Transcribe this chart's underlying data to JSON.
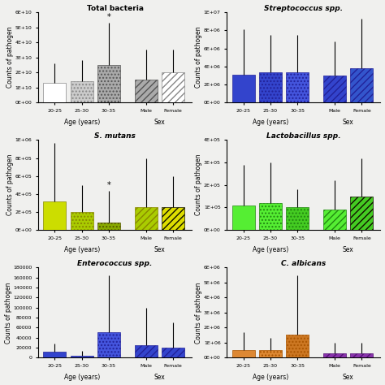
{
  "subplots": [
    {
      "title": "Total bacteria",
      "title_style": "bold",
      "ylabel": "Counts of pathogen",
      "xlabel_age": "Age (years)",
      "xlabel_sex": "Sex",
      "ylim": [
        0,
        60000000000.0
      ],
      "yticks": [
        0,
        10000000000.0,
        20000000000.0,
        30000000000.0,
        40000000000.0,
        50000000000.0,
        60000000000.0
      ],
      "ytick_labels": [
        "0E+00",
        "1E+10",
        "2E+10",
        "3E+10",
        "4E+10",
        "5E+10",
        "6E+10"
      ],
      "bars": [
        {
          "label": "20-25",
          "value": 13000000000.0,
          "err": 13000000000.0,
          "color": "#ffffff",
          "edgecolor": "#888888",
          "hatch": "",
          "group": "age"
        },
        {
          "label": "25-30",
          "value": 14000000000.0,
          "err": 14000000000.0,
          "color": "#cccccc",
          "edgecolor": "#888888",
          "hatch": "....",
          "group": "age"
        },
        {
          "label": "30-35",
          "value": 25000000000.0,
          "err": 28000000000.0,
          "color": "#aaaaaa",
          "edgecolor": "#555555",
          "hatch": "....",
          "group": "age",
          "star": true
        },
        {
          "label": "Male",
          "value": 15000000000.0,
          "err": 20000000000.0,
          "color": "#aaaaaa",
          "edgecolor": "#555555",
          "hatch": "////",
          "group": "sex"
        },
        {
          "label": "Female",
          "value": 20000000000.0,
          "err": 15000000000.0,
          "color": "#ffffff",
          "edgecolor": "#888888",
          "hatch": "////",
          "group": "sex"
        }
      ]
    },
    {
      "title": "Streptococcus spp.",
      "title_style": "italic",
      "ylabel": "Counts of pathogen",
      "xlabel_age": "Age (years)",
      "xlabel_sex": "Sex",
      "ylim": [
        0,
        10000000.0
      ],
      "yticks": [
        0,
        2000000.0,
        4000000.0,
        6000000.0,
        8000000.0,
        10000000.0
      ],
      "ytick_labels": [
        "0E+00",
        "2E+06",
        "4E+06",
        "6E+06",
        "8E+06",
        "1E+07"
      ],
      "bars": [
        {
          "label": "20-25",
          "value": 3100000.0,
          "err": 5000000.0,
          "color": "#3344cc",
          "edgecolor": "#222299",
          "hatch": "",
          "group": "age"
        },
        {
          "label": "25-30",
          "value": 3300000.0,
          "err": 4200000.0,
          "color": "#3344cc",
          "edgecolor": "#222299",
          "hatch": "....",
          "group": "age"
        },
        {
          "label": "30-35",
          "value": 3300000.0,
          "err": 4200000.0,
          "color": "#4455dd",
          "edgecolor": "#222299",
          "hatch": "....",
          "group": "age"
        },
        {
          "label": "Male",
          "value": 3000000.0,
          "err": 3800000.0,
          "color": "#3344cc",
          "edgecolor": "#222299",
          "hatch": "////",
          "group": "sex"
        },
        {
          "label": "Female",
          "value": 3800000.0,
          "err": 5500000.0,
          "color": "#3355cc",
          "edgecolor": "#222299",
          "hatch": "////",
          "group": "sex"
        }
      ]
    },
    {
      "title": "S. mutans",
      "title_style": "italic",
      "ylabel": "Counts of pathogen",
      "xlabel_age": "Age (years)",
      "xlabel_sex": "Sex",
      "ylim": [
        0,
        1000000.0
      ],
      "yticks": [
        0,
        200000.0,
        400000.0,
        600000.0,
        800000.0,
        1000000.0
      ],
      "ytick_labels": [
        "0E+00",
        "2E+05",
        "4E+05",
        "6E+05",
        "8E+05",
        "1E+06"
      ],
      "bars": [
        {
          "label": "20-25",
          "value": 320000.0,
          "err": 650000.0,
          "color": "#ccdd00",
          "edgecolor": "#888800",
          "hatch": "",
          "group": "age"
        },
        {
          "label": "25-30",
          "value": 200000.0,
          "err": 300000.0,
          "color": "#aacc00",
          "edgecolor": "#888800",
          "hatch": "....",
          "group": "age"
        },
        {
          "label": "30-35",
          "value": 80000.0,
          "err": 350000.0,
          "color": "#88aa00",
          "edgecolor": "#555500",
          "hatch": "....",
          "group": "age",
          "star": true
        },
        {
          "label": "Male",
          "value": 250000.0,
          "err": 550000.0,
          "color": "#aacc00",
          "edgecolor": "#888800",
          "hatch": "////",
          "group": "sex"
        },
        {
          "label": "Female",
          "value": 250000.0,
          "err": 350000.0,
          "color": "#dddd00",
          "edgecolor": "#111100",
          "hatch": "////",
          "group": "sex"
        }
      ]
    },
    {
      "title": "Lactobacillus spp.",
      "title_style": "italic",
      "ylabel": "Counts of pathogen",
      "xlabel_age": "Age (years)",
      "xlabel_sex": "Sex",
      "ylim": [
        0,
        400000.0
      ],
      "yticks": [
        0,
        100000.0,
        200000.0,
        300000.0,
        400000.0
      ],
      "ytick_labels": [
        "0E+00",
        "1E+05",
        "2E+05",
        "3E+05",
        "4E+05"
      ],
      "bars": [
        {
          "label": "20-25",
          "value": 110000.0,
          "err": 180000.0,
          "color": "#55ee33",
          "edgecolor": "#228811",
          "hatch": "",
          "group": "age"
        },
        {
          "label": "25-30",
          "value": 120000.0,
          "err": 180000.0,
          "color": "#55ee33",
          "edgecolor": "#228811",
          "hatch": "....",
          "group": "age"
        },
        {
          "label": "30-35",
          "value": 100000.0,
          "err": 80000.0,
          "color": "#44cc22",
          "edgecolor": "#228811",
          "hatch": "....",
          "group": "age"
        },
        {
          "label": "Male",
          "value": 90000.0,
          "err": 130000.0,
          "color": "#55ee33",
          "edgecolor": "#228811",
          "hatch": "////",
          "group": "sex"
        },
        {
          "label": "Female",
          "value": 150000.0,
          "err": 170000.0,
          "color": "#44cc22",
          "edgecolor": "#111100",
          "hatch": "////",
          "group": "sex"
        }
      ]
    },
    {
      "title": "Enterococcus spp.",
      "title_style": "italic",
      "ylabel": "Counts of pathogen",
      "xlabel_age": "Age (years)",
      "xlabel_sex": "Sex",
      "ylim": [
        0,
        180000
      ],
      "yticks": [
        0,
        20000,
        40000,
        60000,
        80000,
        100000,
        120000,
        140000,
        160000,
        180000
      ],
      "ytick_labels": [
        "0",
        "20000",
        "40000",
        "60000",
        "80000",
        "100000",
        "120000",
        "140000",
        "160000",
        "180000"
      ],
      "bars": [
        {
          "label": "20-25",
          "value": 12000,
          "err": 16000,
          "color": "#3344cc",
          "edgecolor": "#222299",
          "hatch": "",
          "group": "age"
        },
        {
          "label": "25-30",
          "value": 4000,
          "err": 10000,
          "color": "#3344cc",
          "edgecolor": "#222299",
          "hatch": "....",
          "group": "age"
        },
        {
          "label": "30-35",
          "value": 50000,
          "err": 115000,
          "color": "#4455dd",
          "edgecolor": "#222299",
          "hatch": "....",
          "group": "age"
        },
        {
          "label": "Male",
          "value": 25000,
          "err": 75000,
          "color": "#3344cc",
          "edgecolor": "#222299",
          "hatch": "////",
          "group": "sex"
        },
        {
          "label": "Female",
          "value": 20000,
          "err": 50000,
          "color": "#3344cc",
          "edgecolor": "#222299",
          "hatch": "////",
          "group": "sex"
        }
      ]
    },
    {
      "title": "C. albicans",
      "title_style": "italic",
      "ylabel": "Counts of pathogen",
      "xlabel_age": "Age (years)",
      "xlabel_sex": "Sex",
      "ylim": [
        0,
        6000000.0
      ],
      "yticks": [
        0,
        1000000.0,
        2000000.0,
        3000000.0,
        4000000.0,
        5000000.0,
        6000000.0
      ],
      "ytick_labels": [
        "0E+00",
        "1E+06",
        "2E+06",
        "3E+06",
        "4E+06",
        "5E+06",
        "6E+06"
      ],
      "bars": [
        {
          "label": "20-25",
          "value": 500000.0,
          "err": 1200000.0,
          "color": "#dd8833",
          "edgecolor": "#aa5500",
          "hatch": "",
          "group": "age"
        },
        {
          "label": "25-30",
          "value": 500000.0,
          "err": 800000.0,
          "color": "#dd8833",
          "edgecolor": "#aa5500",
          "hatch": "....",
          "group": "age"
        },
        {
          "label": "30-35",
          "value": 1500000.0,
          "err": 4000000.0,
          "color": "#cc7722",
          "edgecolor": "#aa5500",
          "hatch": "....",
          "group": "age"
        },
        {
          "label": "Male",
          "value": 300000.0,
          "err": 700000.0,
          "color": "#8833aa",
          "edgecolor": "#551177",
          "hatch": "////",
          "group": "sex"
        },
        {
          "label": "Female",
          "value": 300000.0,
          "err": 700000.0,
          "color": "#8833aa",
          "edgecolor": "#551177",
          "hatch": "////",
          "group": "sex"
        }
      ]
    }
  ],
  "figure_bg": "#f0f0ee",
  "bar_width": 0.55,
  "positions": [
    0,
    0.65,
    1.3,
    2.2,
    2.85
  ]
}
